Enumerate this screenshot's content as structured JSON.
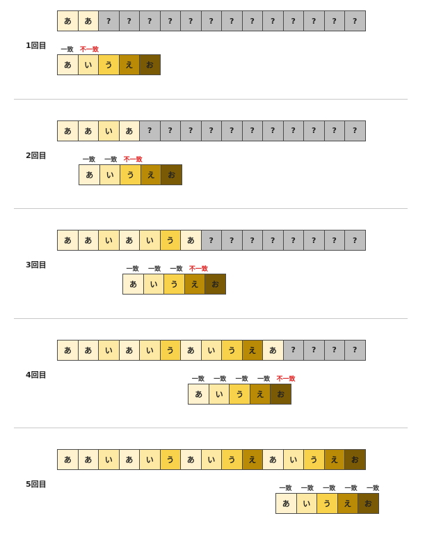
{
  "colors": {
    "あ": "#fff3cf",
    "い": "#fde9a4",
    "う": "#f7d24a",
    "え": "#b88a05",
    "お": "#7b5a06",
    "?": "#bfbfbf",
    "match": "#333333",
    "mismatch": "#e02020"
  },
  "pattern": [
    "あ",
    "い",
    "う",
    "え",
    "お"
  ],
  "labels": {
    "match": "一致",
    "mismatch": "不一致"
  },
  "rounds": [
    {
      "title": "1回目",
      "text": [
        "あ",
        "あ",
        "?",
        "?",
        "?",
        "?",
        "?",
        "?",
        "?",
        "?",
        "?",
        "?",
        "?",
        "?",
        "?"
      ],
      "offset": 0,
      "matched": 1,
      "mismatch": true
    },
    {
      "title": "2回目",
      "text": [
        "あ",
        "あ",
        "い",
        "あ",
        "?",
        "?",
        "?",
        "?",
        "?",
        "?",
        "?",
        "?",
        "?",
        "?",
        "?"
      ],
      "offset": 1,
      "matched": 2,
      "mismatch": true
    },
    {
      "title": "3回目",
      "text": [
        "あ",
        "あ",
        "い",
        "あ",
        "い",
        "う",
        "あ",
        "?",
        "?",
        "?",
        "?",
        "?",
        "?",
        "?",
        "?"
      ],
      "offset": 3,
      "matched": 3,
      "mismatch": true
    },
    {
      "title": "4回目",
      "text": [
        "あ",
        "あ",
        "い",
        "あ",
        "い",
        "う",
        "あ",
        "い",
        "う",
        "え",
        "あ",
        "?",
        "?",
        "?",
        "?"
      ],
      "offset": 6,
      "matched": 4,
      "mismatch": true
    },
    {
      "title": "5回目",
      "text": [
        "あ",
        "あ",
        "い",
        "あ",
        "い",
        "う",
        "あ",
        "い",
        "う",
        "え",
        "あ",
        "い",
        "う",
        "え",
        "お"
      ],
      "offset": 10,
      "matched": 5,
      "mismatch": false
    }
  ]
}
